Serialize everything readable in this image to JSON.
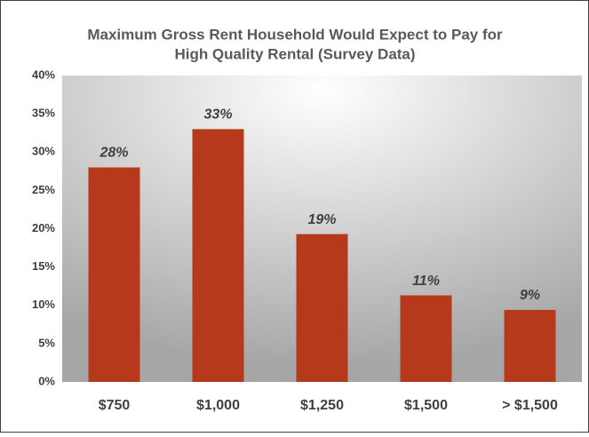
{
  "chart_data": {
    "type": "bar",
    "title": [
      "Maximum Gross Rent Household Would Expect to Pay for",
      "High Quality Rental (Survey Data)"
    ],
    "categories": [
      "$750",
      "$1,000",
      "$1,250",
      "$1,500",
      "> $1,500"
    ],
    "values": [
      28.0,
      33.0,
      19.3,
      11.3,
      9.4
    ],
    "value_labels": [
      "28%",
      "33%",
      "19%",
      "11%",
      "9%"
    ],
    "color": "#b5391a",
    "ylim": [
      0,
      40
    ],
    "yticks": [
      {
        "value": 0,
        "label": "0%"
      },
      {
        "value": 5,
        "label": "5%"
      },
      {
        "value": 10,
        "label": "10%"
      },
      {
        "value": 15,
        "label": "15%"
      },
      {
        "value": 20,
        "label": "20%"
      },
      {
        "value": 25,
        "label": "25%"
      },
      {
        "value": 30,
        "label": "30%"
      },
      {
        "value": 35,
        "label": "35%"
      },
      {
        "value": 40,
        "label": "40%"
      }
    ]
  }
}
